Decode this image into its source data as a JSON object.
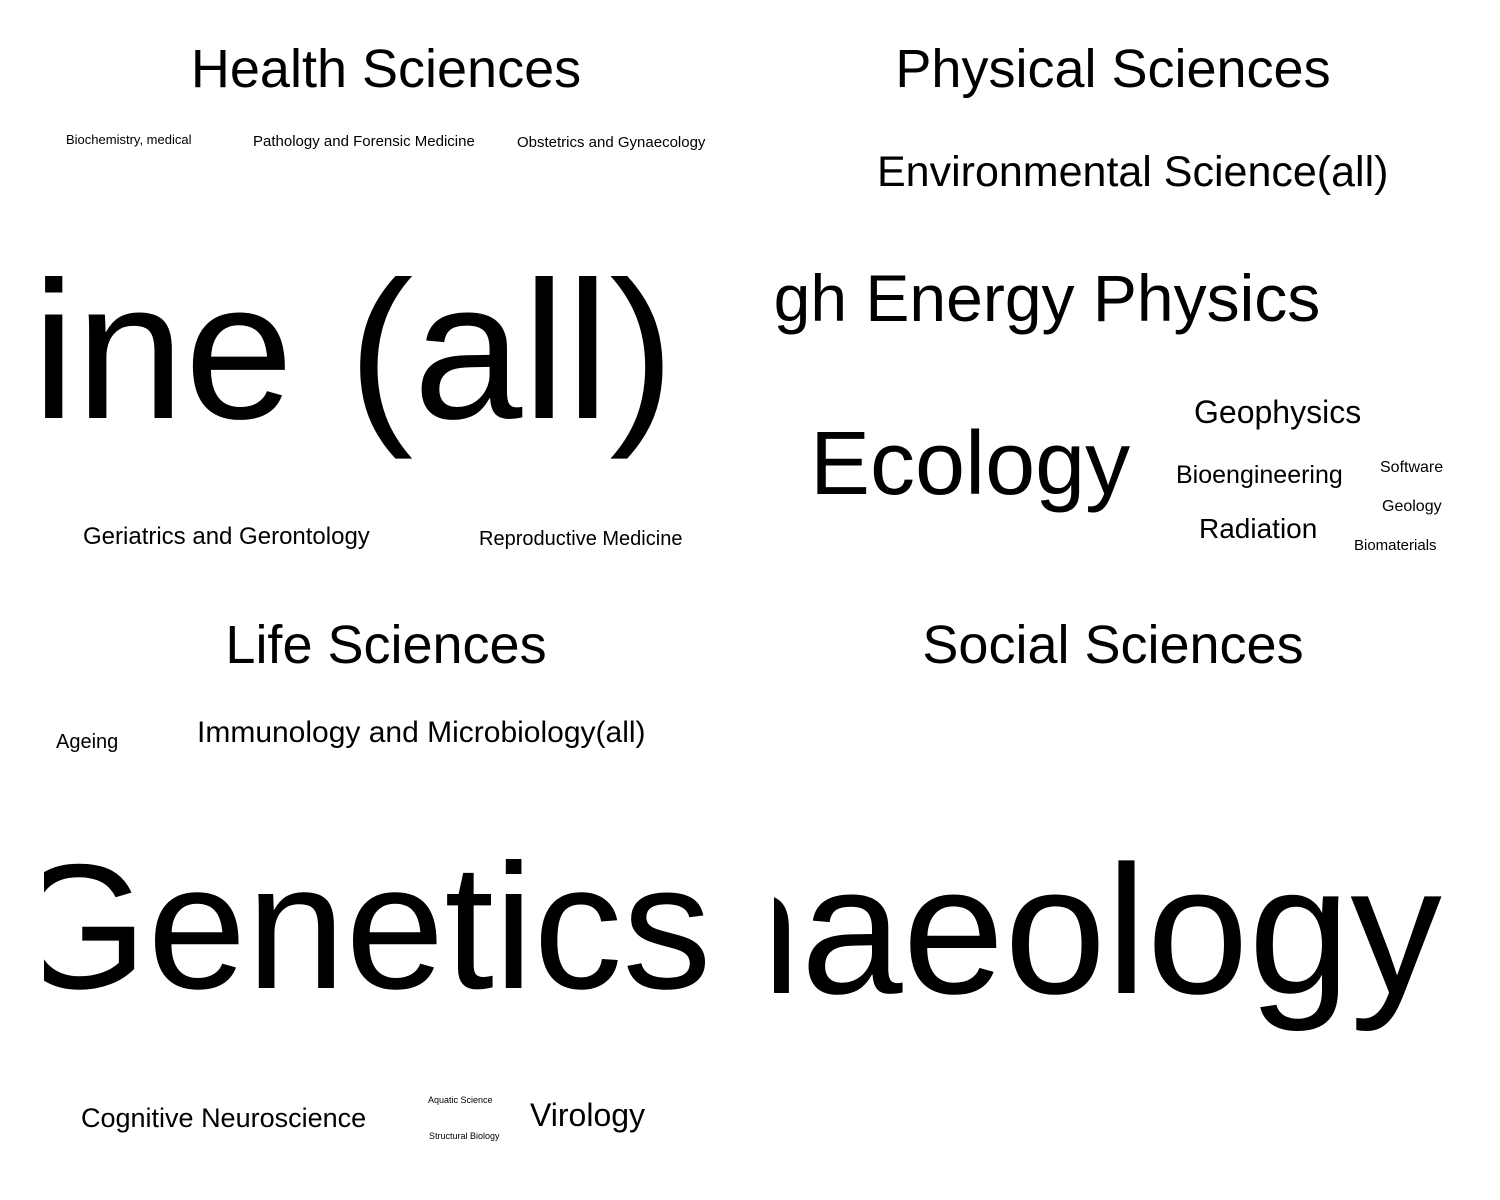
{
  "panels": {
    "health": {
      "title": "Health Sciences",
      "words": [
        "Biochemistry, medical",
        "Pathology and Forensic Medicine",
        "Obstetrics and Gynaecology",
        "ine (all)",
        "Geriatrics and Gerontology",
        "Reproductive Medicine"
      ]
    },
    "physical": {
      "title": "Physical Sciences",
      "words": [
        "Environmental Science(all)",
        "igh Energy Physics",
        "Ecology",
        "Geophysics",
        "Bioengineering",
        "Software",
        "Geology",
        "Radiation",
        "Biomaterials"
      ]
    },
    "life": {
      "title": "Life Sciences",
      "words": [
        "Ageing",
        "Immunology and Microbiology(all)",
        "Genetics",
        "Cognitive Neuroscience",
        "Aquatic Science",
        "Structural Biology",
        "Virology"
      ]
    },
    "social": {
      "title": "Social Sciences",
      "words": [
        "haeology"
      ]
    }
  }
}
